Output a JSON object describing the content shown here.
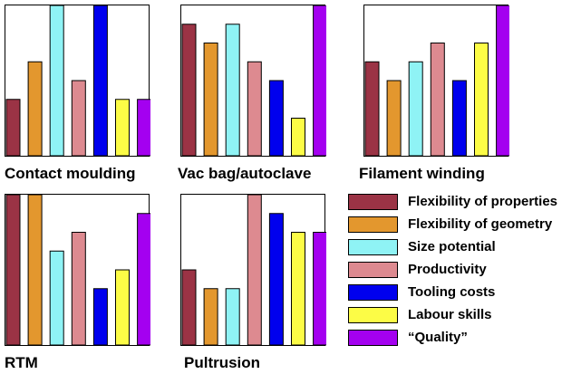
{
  "chart_data": {
    "type": "bar",
    "ylim": [
      0,
      8
    ],
    "series_colors": {
      "Flexibility of properties": "#9B3345",
      "Flexibility of geometry": "#E3972E",
      "Size potential": "#8FF3F5",
      "Productivity": "#DD8A90",
      "Tooling costs": "#0000EE",
      "Labour skills": "#FCFC46",
      "“Quality”": "#A400F0"
    },
    "legend": [
      {
        "label": "Flexibility of properties",
        "color": "#9B3345"
      },
      {
        "label": "Flexibility of geometry",
        "color": "#E3972E"
      },
      {
        "label": "Size potential",
        "color": "#8FF3F5"
      },
      {
        "label": "Productivity",
        "color": "#DD8A90"
      },
      {
        "label": "Tooling costs",
        "color": "#0000EE"
      },
      {
        "label": "Labour skills",
        "color": "#FCFC46"
      },
      {
        "label": "“Quality”",
        "color": "#A400F0"
      }
    ],
    "charts": [
      {
        "title": "Contact moulding",
        "values": [
          3,
          5,
          8,
          4,
          8,
          3,
          3
        ]
      },
      {
        "title": "Vac bag/autoclave",
        "values": [
          7,
          6,
          7,
          5,
          4,
          2,
          8
        ]
      },
      {
        "title": "Filament winding",
        "values": [
          5,
          4,
          5,
          6,
          4,
          6,
          8
        ]
      },
      {
        "title": "RTM",
        "values": [
          8,
          8,
          5,
          6,
          3,
          4,
          7
        ]
      },
      {
        "title": "Pultrusion",
        "values": [
          4,
          3,
          3,
          8,
          7,
          6,
          6
        ]
      }
    ]
  }
}
